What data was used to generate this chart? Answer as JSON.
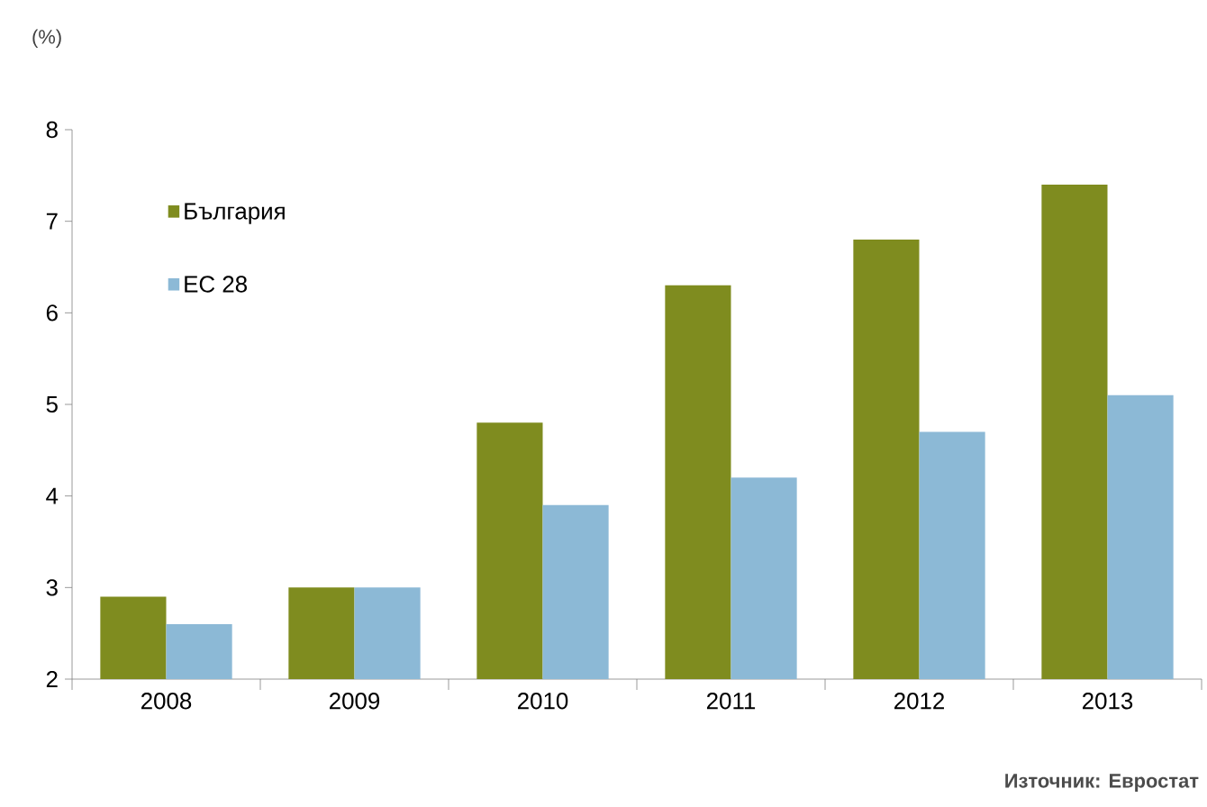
{
  "chart_data": {
    "type": "bar",
    "ylabel": "(%)",
    "categories": [
      "2008",
      "2009",
      "2010",
      "2011",
      "2012",
      "2013"
    ],
    "series": [
      {
        "name": "България",
        "color": "#7f8c1f",
        "values": [
          2.9,
          3.0,
          4.8,
          6.3,
          6.8,
          7.4
        ]
      },
      {
        "name": "ЕС 28",
        "color": "#8cb9d6",
        "values": [
          2.6,
          3.0,
          3.9,
          4.2,
          4.7,
          5.1
        ]
      }
    ],
    "ylim": [
      2,
      8
    ],
    "yticks": [
      2,
      3,
      4,
      5,
      6,
      7,
      8
    ],
    "grid": false,
    "legend": "top left",
    "annotations": [
      "**Източник: Евростат**"
    ]
  }
}
